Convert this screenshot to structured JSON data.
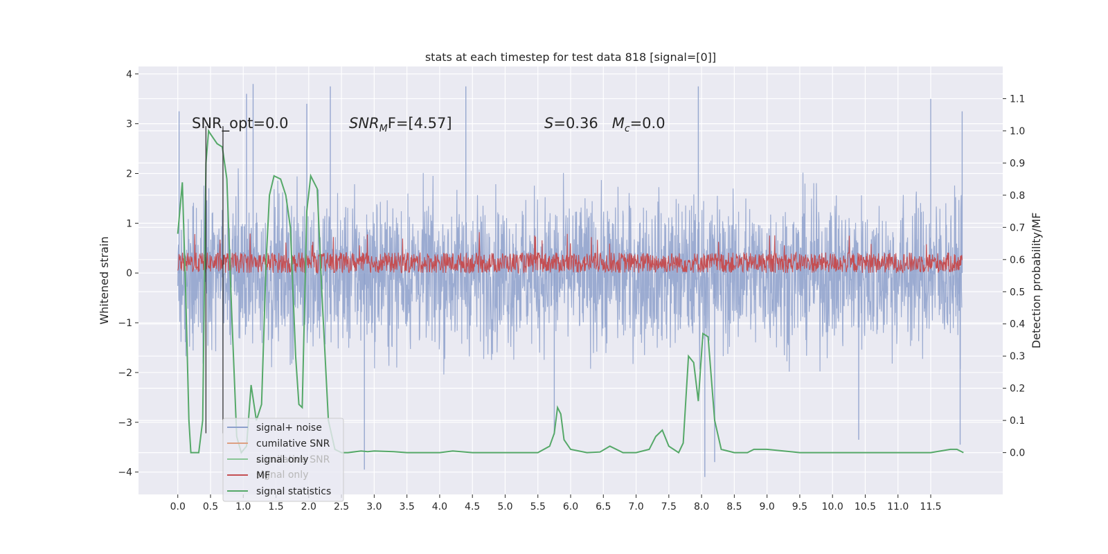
{
  "chart_data": {
    "type": "line",
    "title": "stats at each timestep for test data 818 [signal=[0]]",
    "xlabel": "",
    "ylabel": "Whitened strain",
    "y2label": "Detection probability/MF",
    "xlim": [
      -0.6,
      12.6
    ],
    "ylim": [
      -4.45,
      4.15
    ],
    "y2lim": [
      -0.13,
      1.2
    ],
    "x_ticks": [
      0.0,
      0.5,
      1.0,
      1.5,
      2.0,
      2.5,
      3.0,
      3.5,
      4.0,
      4.5,
      5.0,
      5.5,
      6.0,
      6.5,
      7.0,
      7.5,
      8.0,
      8.5,
      9.0,
      9.5,
      10.0,
      10.5,
      11.0,
      11.5
    ],
    "x_tick_labels": [
      "0.0",
      "0.5",
      "1.0",
      "1.5",
      "2.0",
      "2.5",
      "3.0",
      "3.5",
      "4.0",
      "4.5",
      "5.0",
      "5.5",
      "6.0",
      "6.5",
      "7.0",
      "7.5",
      "8.0",
      "8.5",
      "9.0",
      "9.5",
      "10.0",
      "10.5",
      "11.0",
      "11.5"
    ],
    "y_ticks": [
      -4,
      -3,
      -2,
      -1,
      0,
      1,
      2,
      3,
      4
    ],
    "y_tick_labels": [
      "−4",
      "−3",
      "−2",
      "−1",
      "0",
      "1",
      "2",
      "3",
      "4"
    ],
    "y2_ticks": [
      0.0,
      0.1,
      0.2,
      0.3,
      0.4,
      0.5,
      0.6,
      0.7,
      0.8,
      0.9,
      1.0,
      1.1
    ],
    "y2_tick_labels": [
      "0.0",
      "0.1",
      "0.2",
      "0.3",
      "0.4",
      "0.5",
      "0.6",
      "0.7",
      "0.8",
      "0.9",
      "1.0",
      "1.1"
    ],
    "annotations": [
      {
        "text": "SNR_opt=0.0",
        "x": 0.2,
        "y": 2.95
      },
      {
        "text_prefix": "SNR",
        "text_sub": "M",
        "text_suffix": "F=[4.57]",
        "x": 2.6,
        "y": 2.95
      },
      {
        "text_a": "S",
        "text_b": "=0.36   ",
        "text_c": "M",
        "text_sub": "c",
        "text_d": "=0.0",
        "x": 5.6,
        "y": 2.95
      }
    ],
    "vlines": [
      0.43,
      0.69
    ],
    "legend": {
      "location": "lower-left",
      "entries": [
        {
          "label": "signal+ noise",
          "color": "#8da0cb"
        },
        {
          "label": "cumilative SNR",
          "color": "#dd9f81"
        },
        {
          "label": "signal only",
          "color": "#89c596"
        },
        {
          "label": "MF",
          "color": "#c44e52"
        },
        {
          "label": "signal statistics",
          "color": "#55a868"
        }
      ],
      "ghost_labels": [
        "cumilative SNR",
        "signal only"
      ]
    },
    "series": [
      {
        "name": "signal+ noise",
        "axis": "left",
        "color": "#8da0cb",
        "x_start": 0.0,
        "x_end": 11.98,
        "envelope_typical": [
          -2.0,
          2.0
        ],
        "peak_range": [
          -4.1,
          3.8
        ],
        "peaks": [
          {
            "x": 0.02,
            "y": 3.25
          },
          {
            "x": 1.05,
            "y": 3.6
          },
          {
            "x": 1.15,
            "y": 3.8
          },
          {
            "x": 1.97,
            "y": 3.4
          },
          {
            "x": 2.33,
            "y": 3.75
          },
          {
            "x": 4.4,
            "y": 3.75
          },
          {
            "x": 7.95,
            "y": 3.75
          },
          {
            "x": 11.5,
            "y": 3.5
          },
          {
            "x": 11.98,
            "y": 3.25
          },
          {
            "x": 2.85,
            "y": -3.95
          },
          {
            "x": 8.05,
            "y": -4.1
          },
          {
            "x": 8.2,
            "y": -3.8
          },
          {
            "x": 11.95,
            "y": -3.45
          },
          {
            "x": 5.75,
            "y": -3.25
          },
          {
            "x": 10.4,
            "y": -3.35
          }
        ]
      },
      {
        "name": "MF",
        "axis": "left",
        "color": "#c44e52",
        "x_start": 0.0,
        "x_end": 11.98,
        "typical_range": [
          0.0,
          0.55
        ],
        "max": 0.85
      },
      {
        "name": "signal statistics",
        "axis": "right",
        "color": "#55a868",
        "x": [
          0.0,
          0.07,
          0.12,
          0.17,
          0.2,
          0.25,
          0.32,
          0.38,
          0.43,
          0.47,
          0.5,
          0.6,
          0.68,
          0.75,
          0.82,
          0.9,
          0.97,
          1.05,
          1.12,
          1.2,
          1.28,
          1.35,
          1.4,
          1.47,
          1.57,
          1.65,
          1.72,
          1.8,
          1.85,
          1.9,
          1.97,
          2.03,
          2.13,
          2.2,
          2.3,
          2.4,
          2.5,
          2.6,
          2.8,
          2.9,
          3.0,
          3.3,
          3.5,
          4.0,
          4.2,
          4.5,
          5.0,
          5.5,
          5.68,
          5.75,
          5.8,
          5.85,
          5.9,
          6.0,
          6.25,
          6.45,
          6.6,
          6.8,
          7.0,
          7.2,
          7.3,
          7.4,
          7.5,
          7.65,
          7.72,
          7.8,
          7.88,
          7.95,
          8.02,
          8.1,
          8.2,
          8.3,
          8.5,
          8.7,
          8.8,
          9.0,
          9.5,
          10.0,
          11.0,
          11.5,
          11.8,
          11.9,
          12.0
        ],
        "y": [
          0.68,
          0.84,
          0.5,
          0.1,
          0.0,
          0.0,
          0.0,
          0.1,
          0.9,
          1.0,
          0.99,
          0.96,
          0.95,
          0.85,
          0.45,
          0.05,
          0.0,
          0.02,
          0.21,
          0.1,
          0.15,
          0.6,
          0.8,
          0.86,
          0.85,
          0.8,
          0.7,
          0.3,
          0.15,
          0.14,
          0.75,
          0.86,
          0.82,
          0.5,
          0.1,
          0.01,
          0.0,
          0.0,
          0.005,
          0.003,
          0.005,
          0.003,
          0.0,
          0.0,
          0.005,
          0.0,
          0.0,
          0.0,
          0.02,
          0.06,
          0.14,
          0.12,
          0.04,
          0.01,
          0.0,
          0.002,
          0.02,
          0.0,
          0.0,
          0.01,
          0.05,
          0.07,
          0.02,
          0.0,
          0.03,
          0.3,
          0.28,
          0.16,
          0.37,
          0.36,
          0.1,
          0.01,
          0.0,
          0.0,
          0.01,
          0.01,
          0.0,
          0.0,
          0.0,
          0.0,
          0.01,
          0.01,
          0.0
        ]
      }
    ]
  }
}
